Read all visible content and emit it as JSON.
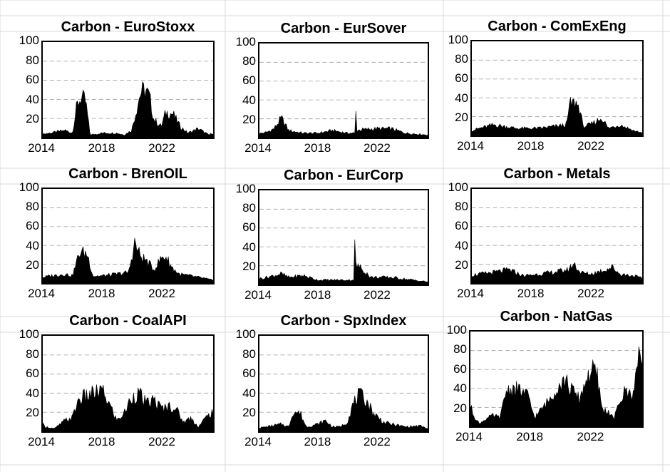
{
  "sheet": {
    "gridline_color": "#d9d9d9"
  },
  "colors": {
    "bars": "#000000",
    "gridlines": "#aaaaaa"
  },
  "chart_data": [
    {
      "type": "area",
      "title": "Carbon - EuroStoxx",
      "xlabel": "",
      "ylabel": "",
      "ylim": [
        0,
        100
      ],
      "xlim": [
        2014,
        2025.5
      ],
      "yticks": [
        "100",
        "80",
        "60",
        "40",
        "20"
      ],
      "xticks": [
        "2014",
        "2018",
        "2022"
      ],
      "grid": "y-dashed",
      "series": [
        {
          "x": [
            2013.5,
            2014.5,
            2015.5,
            2016.0,
            2016.3,
            2016.6,
            2016.9,
            2017.2,
            2018.0,
            2019.0,
            2019.5,
            2020.0,
            2020.6,
            2020.9,
            2021.2,
            2021.5,
            2022.0,
            2022.3,
            2022.8,
            2023.3,
            2023.8,
            2024.5,
            2025.2,
            2025.5
          ],
          "values": [
            3,
            5,
            8,
            5,
            35,
            45,
            40,
            3,
            5,
            5,
            3,
            8,
            50,
            53,
            45,
            20,
            12,
            28,
            26,
            12,
            5,
            10,
            3,
            5
          ]
        }
      ]
    },
    {
      "type": "area",
      "title": "Carbon - EurSover",
      "xlabel": "",
      "ylabel": "",
      "ylim": [
        0,
        100
      ],
      "xlim": [
        2014,
        2025.5
      ],
      "yticks": [
        "100",
        "80",
        "60",
        "40",
        "20"
      ],
      "xticks": [
        "2014",
        "2018",
        "2022"
      ],
      "grid": "y-dashed",
      "series": [
        {
          "x": [
            2013.5,
            2014.5,
            2015.0,
            2015.5,
            2016.0,
            2017.0,
            2018.0,
            2019.0,
            2020.0,
            2020.55,
            2020.6,
            2020.65,
            2021.0,
            2022.0,
            2023.0,
            2024.0,
            2025.5
          ],
          "values": [
            3,
            6,
            10,
            22,
            8,
            5,
            5,
            8,
            5,
            5,
            32,
            8,
            9,
            10,
            10,
            5,
            3
          ]
        }
      ]
    },
    {
      "type": "area",
      "title": "Carbon - ComExEng",
      "xlabel": "",
      "ylabel": "",
      "ylim": [
        0,
        100
      ],
      "xlim": [
        2014,
        2025.5
      ],
      "yticks": [
        "100",
        "80",
        "60",
        "40",
        "20"
      ],
      "xticks": [
        "2014",
        "2018",
        "2022"
      ],
      "grid": "y-dashed",
      "series": [
        {
          "x": [
            2013.5,
            2014.5,
            2015.5,
            2017.0,
            2018.5,
            2019.5,
            2020.4,
            2020.6,
            2021.0,
            2021.3,
            2021.5,
            2022.0,
            2022.8,
            2023.2,
            2024.0,
            2025.0,
            2025.5
          ],
          "values": [
            3,
            8,
            12,
            8,
            8,
            10,
            12,
            35,
            37,
            30,
            10,
            12,
            20,
            8,
            12,
            5,
            3
          ]
        }
      ]
    },
    {
      "type": "area",
      "title": "Carbon - BrenOIL",
      "xlabel": "",
      "ylabel": "",
      "ylim": [
        0,
        100
      ],
      "xlim": [
        2014,
        2025.5
      ],
      "yticks": [
        "100",
        "80",
        "60",
        "40",
        "20"
      ],
      "xticks": [
        "2014",
        "2018",
        "2022"
      ],
      "grid": "y-dashed",
      "series": [
        {
          "x": [
            2013.5,
            2014.5,
            2015.5,
            2016.0,
            2016.5,
            2017.0,
            2017.4,
            2018.0,
            2019.0,
            2019.8,
            2020.2,
            2020.6,
            2021.0,
            2021.5,
            2022.0,
            2022.3,
            2022.7,
            2023.2,
            2024.0,
            2025.0,
            2025.5
          ],
          "values": [
            5,
            8,
            10,
            8,
            35,
            33,
            8,
            8,
            10,
            12,
            45,
            30,
            25,
            15,
            28,
            30,
            18,
            10,
            8,
            5,
            3
          ]
        }
      ]
    },
    {
      "type": "area",
      "title": "Carbon - EurCorp",
      "xlabel": "",
      "ylabel": "",
      "ylim": [
        0,
        100
      ],
      "xlim": [
        2014,
        2025.5
      ],
      "yticks": [
        "100",
        "80",
        "60",
        "40",
        "20"
      ],
      "xticks": [
        "2014",
        "2018",
        "2022"
      ],
      "grid": "y-dashed",
      "series": [
        {
          "x": [
            2013.5,
            2014.5,
            2015.5,
            2016.0,
            2017.0,
            2018.0,
            2019.0,
            2020.0,
            2020.45,
            2020.5,
            2020.55,
            2020.8,
            2021.2,
            2021.6,
            2022.0,
            2023.0,
            2024.0,
            2025.5
          ],
          "values": [
            5,
            8,
            12,
            8,
            10,
            5,
            5,
            5,
            5,
            55,
            22,
            20,
            15,
            8,
            8,
            8,
            6,
            3
          ]
        }
      ]
    },
    {
      "type": "area",
      "title": "Carbon - Metals",
      "xlabel": "",
      "ylabel": "",
      "ylim": [
        0,
        100
      ],
      "xlim": [
        2014,
        2025.5
      ],
      "yticks": [
        "100",
        "80",
        "60",
        "40",
        "20"
      ],
      "xticks": [
        "2014",
        "2018",
        "2022"
      ],
      "grid": "y-dashed",
      "series": [
        {
          "x": [
            2013.5,
            2014.5,
            2015.5,
            2016.5,
            2017.5,
            2018.5,
            2019.5,
            2020.5,
            2020.9,
            2021.3,
            2022.0,
            2023.0,
            2023.5,
            2024.0,
            2025.0,
            2025.5
          ],
          "values": [
            8,
            10,
            12,
            15,
            8,
            10,
            12,
            15,
            22,
            12,
            10,
            15,
            18,
            10,
            8,
            5
          ]
        }
      ]
    },
    {
      "type": "area",
      "title": "Carbon - CoalAPI",
      "xlabel": "",
      "ylabel": "",
      "ylim": [
        0,
        100
      ],
      "xlim": [
        2014,
        2025.5
      ],
      "yticks": [
        "100",
        "80",
        "60",
        "40",
        "20"
      ],
      "xticks": [
        "2014",
        "2018",
        "2022"
      ],
      "grid": "y-dashed",
      "series": [
        {
          "x": [
            2013.5,
            2014.2,
            2014.8,
            2015.5,
            2016.0,
            2016.4,
            2016.8,
            2017.5,
            2018.0,
            2018.5,
            2019.0,
            2019.5,
            2020.0,
            2020.5,
            2021.0,
            2021.5,
            2022.0,
            2022.5,
            2023.0,
            2023.5,
            2024.0,
            2024.5,
            2025.0,
            2025.5
          ],
          "values": [
            15,
            5,
            3,
            12,
            15,
            35,
            38,
            42,
            45,
            30,
            12,
            20,
            38,
            42,
            30,
            35,
            25,
            28,
            25,
            10,
            15,
            5,
            15,
            22
          ]
        }
      ]
    },
    {
      "type": "area",
      "title": "Carbon - SpxIndex",
      "xlabel": "",
      "ylabel": "",
      "ylim": [
        0,
        100
      ],
      "xlim": [
        2014,
        2025.5
      ],
      "yticks": [
        "100",
        "80",
        "60",
        "40",
        "20"
      ],
      "xticks": [
        "2014",
        "2018",
        "2022"
      ],
      "grid": "y-dashed",
      "series": [
        {
          "x": [
            2013.5,
            2014.5,
            2015.5,
            2016.0,
            2016.3,
            2016.8,
            2017.2,
            2018.0,
            2018.5,
            2019.0,
            2019.5,
            2020.0,
            2020.4,
            2020.8,
            2021.3,
            2021.8,
            2022.5,
            2023.0,
            2024.0,
            2025.0,
            2025.5
          ],
          "values": [
            3,
            5,
            8,
            5,
            22,
            20,
            5,
            8,
            12,
            5,
            5,
            10,
            30,
            40,
            35,
            20,
            10,
            8,
            5,
            6,
            3
          ]
        }
      ]
    },
    {
      "type": "area",
      "title": "Carbon - NatGas",
      "xlabel": "",
      "ylabel": "",
      "ylim": [
        0,
        100
      ],
      "xlim": [
        2014,
        2025.5
      ],
      "yticks": [
        "100",
        "80",
        "60",
        "40",
        "20"
      ],
      "xticks": [
        "2014",
        "2018",
        "2022"
      ],
      "grid": "y-dashed",
      "series": [
        {
          "x": [
            2013.5,
            2014.0,
            2014.3,
            2014.6,
            2015.0,
            2015.5,
            2016.0,
            2016.4,
            2016.8,
            2017.3,
            2017.8,
            2018.3,
            2018.8,
            2019.3,
            2019.8,
            2020.3,
            2020.8,
            2021.3,
            2021.8,
            2022.2,
            2022.5,
            2022.8,
            2023.3,
            2023.6,
            2024.0,
            2024.4,
            2024.8,
            2025.0,
            2025.2,
            2025.5
          ],
          "values": [
            15,
            22,
            10,
            3,
            8,
            12,
            10,
            40,
            42,
            40,
            35,
            10,
            20,
            30,
            45,
            52,
            40,
            30,
            55,
            62,
            55,
            20,
            15,
            8,
            28,
            40,
            35,
            50,
            70,
            78
          ]
        }
      ]
    }
  ]
}
